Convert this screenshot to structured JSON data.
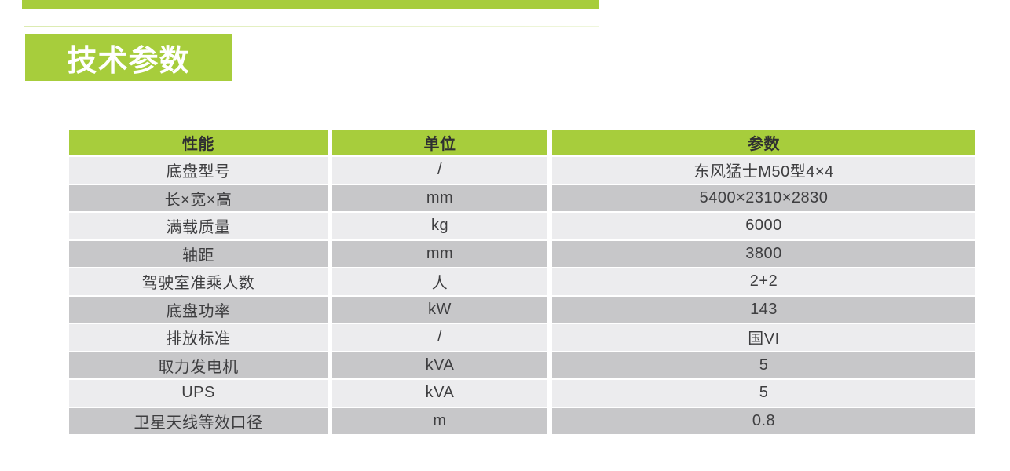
{
  "page": {
    "section_title": "技术参数"
  },
  "colors": {
    "accent_green": "#a7cd3c",
    "row_light": "#ececee",
    "row_dark": "#c7c7c9",
    "header_text": "#2f2f31",
    "body_text": "#3e3e40"
  },
  "table": {
    "columns": [
      "性能",
      "单位",
      "参数"
    ],
    "rows": [
      [
        "底盘型号",
        "/",
        "东风猛士M50型4×4"
      ],
      [
        "长×宽×高",
        "mm",
        "5400×2310×2830"
      ],
      [
        "满载质量",
        "kg",
        "6000"
      ],
      [
        "轴距",
        "mm",
        "3800"
      ],
      [
        "驾驶室准乘人数",
        "人",
        "2+2"
      ],
      [
        "底盘功率",
        "kW",
        "143"
      ],
      [
        "排放标准",
        "/",
        "国VI"
      ],
      [
        "取力发电机",
        "kVA",
        "5"
      ],
      [
        "UPS",
        "kVA",
        "5"
      ],
      [
        "卫星天线等效口径",
        "m",
        "0.8"
      ]
    ]
  }
}
